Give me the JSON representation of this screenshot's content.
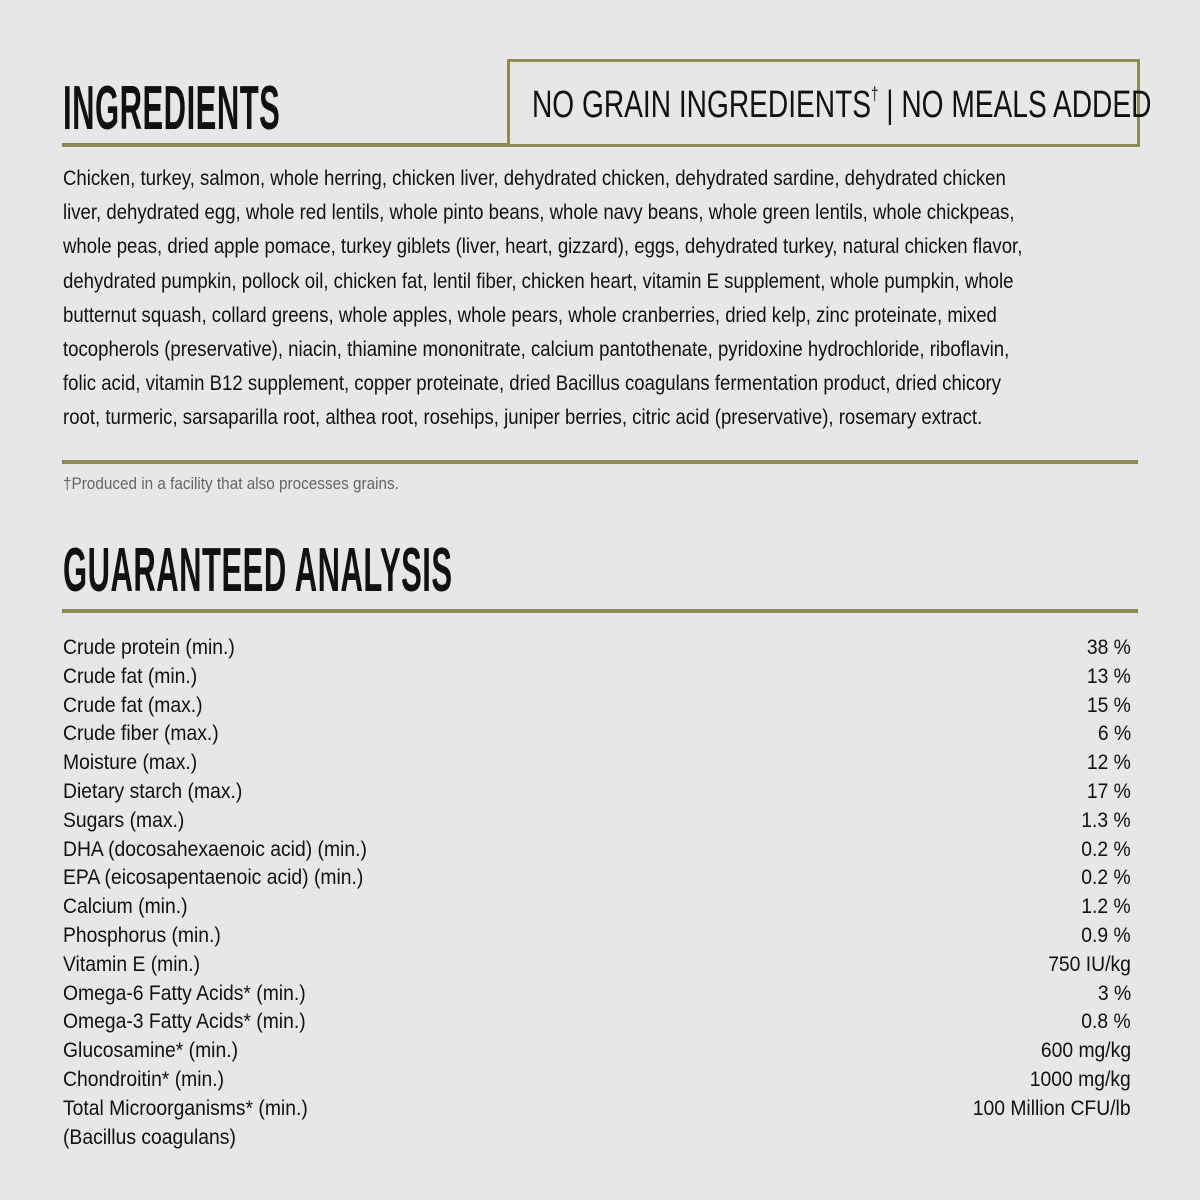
{
  "ingredients": {
    "title": "INGREDIENTS",
    "badge": "NO GRAIN INGREDIENTS",
    "badge_mark": "†",
    "badge_rest": " | NO MEALS ADDED",
    "lines": [
      "Chicken, turkey, salmon, whole herring, chicken liver, dehydrated chicken, dehydrated sardine, dehydrated chicken",
      "liver, dehydrated egg, whole red lentils, whole pinto beans, whole navy beans, whole green lentils, whole chickpeas,",
      "whole peas, dried apple pomace, turkey giblets (liver, heart, gizzard), eggs, dehydrated turkey, natural chicken flavor,",
      "dehydrated pumpkin, pollock oil, chicken fat, lentil fiber, chicken heart, vitamin E supplement, whole pumpkin, whole",
      "butternut squash, collard greens, whole apples, whole pears, whole cranberries, dried kelp, zinc proteinate, mixed",
      "tocopherols (preservative), niacin, thiamine mononitrate, calcium pantothenate, pyridoxine hydrochloride, riboflavin,",
      "folic acid, vitamin B12 supplement, copper proteinate, dried Bacillus coagulans fermentation product, dried chicory",
      "root, turmeric, sarsaparilla root, althea root, rosehips, juniper berries, citric acid (preservative), rosemary extract."
    ],
    "footnote": "†Produced in a facility that also processes grains."
  },
  "analysis": {
    "title": "GUARANTEED ANALYSIS",
    "rows": [
      {
        "label": "Crude protein (min.)",
        "value": "38 %"
      },
      {
        "label": "Crude fat (min.)",
        "value": "13 %"
      },
      {
        "label": "Crude fat (max.)",
        "value": "15 %"
      },
      {
        "label": "Crude fiber (max.)",
        "value": "6 %"
      },
      {
        "label": "Moisture (max.)",
        "value": "12 %"
      },
      {
        "label": "Dietary starch (max.)",
        "value": "17 %"
      },
      {
        "label": "Sugars (max.)",
        "value": "1.3 %"
      },
      {
        "label": "DHA (docosahexaenoic acid) (min.)",
        "value": "0.2 %"
      },
      {
        "label": "EPA (eicosapentaenoic acid) (min.)",
        "value": "0.2 %"
      },
      {
        "label": "Calcium (min.)",
        "value": "1.2 %"
      },
      {
        "label": "Phosphorus (min.)",
        "value": "0.9 %"
      },
      {
        "label": "Vitamin E (min.)",
        "value": "750 IU/kg"
      },
      {
        "label": "Omega-6 Fatty Acids* (min.)",
        "value": "3 %"
      },
      {
        "label": "Omega-3 Fatty Acids* (min.)",
        "value": "0.8 %"
      },
      {
        "label": "Glucosamine* (min.)",
        "value": "600 mg/kg"
      },
      {
        "label": "Chondroitin* (min.)",
        "value": "1000 mg/kg"
      },
      {
        "label": "Total Microorganisms* (min.)",
        "value": "100 Million CFU/lb"
      },
      {
        "label": "(Bacillus coagulans)",
        "value": ""
      }
    ]
  },
  "colors": {
    "accent": "#8b8c55",
    "background": "#e7e7e7"
  }
}
